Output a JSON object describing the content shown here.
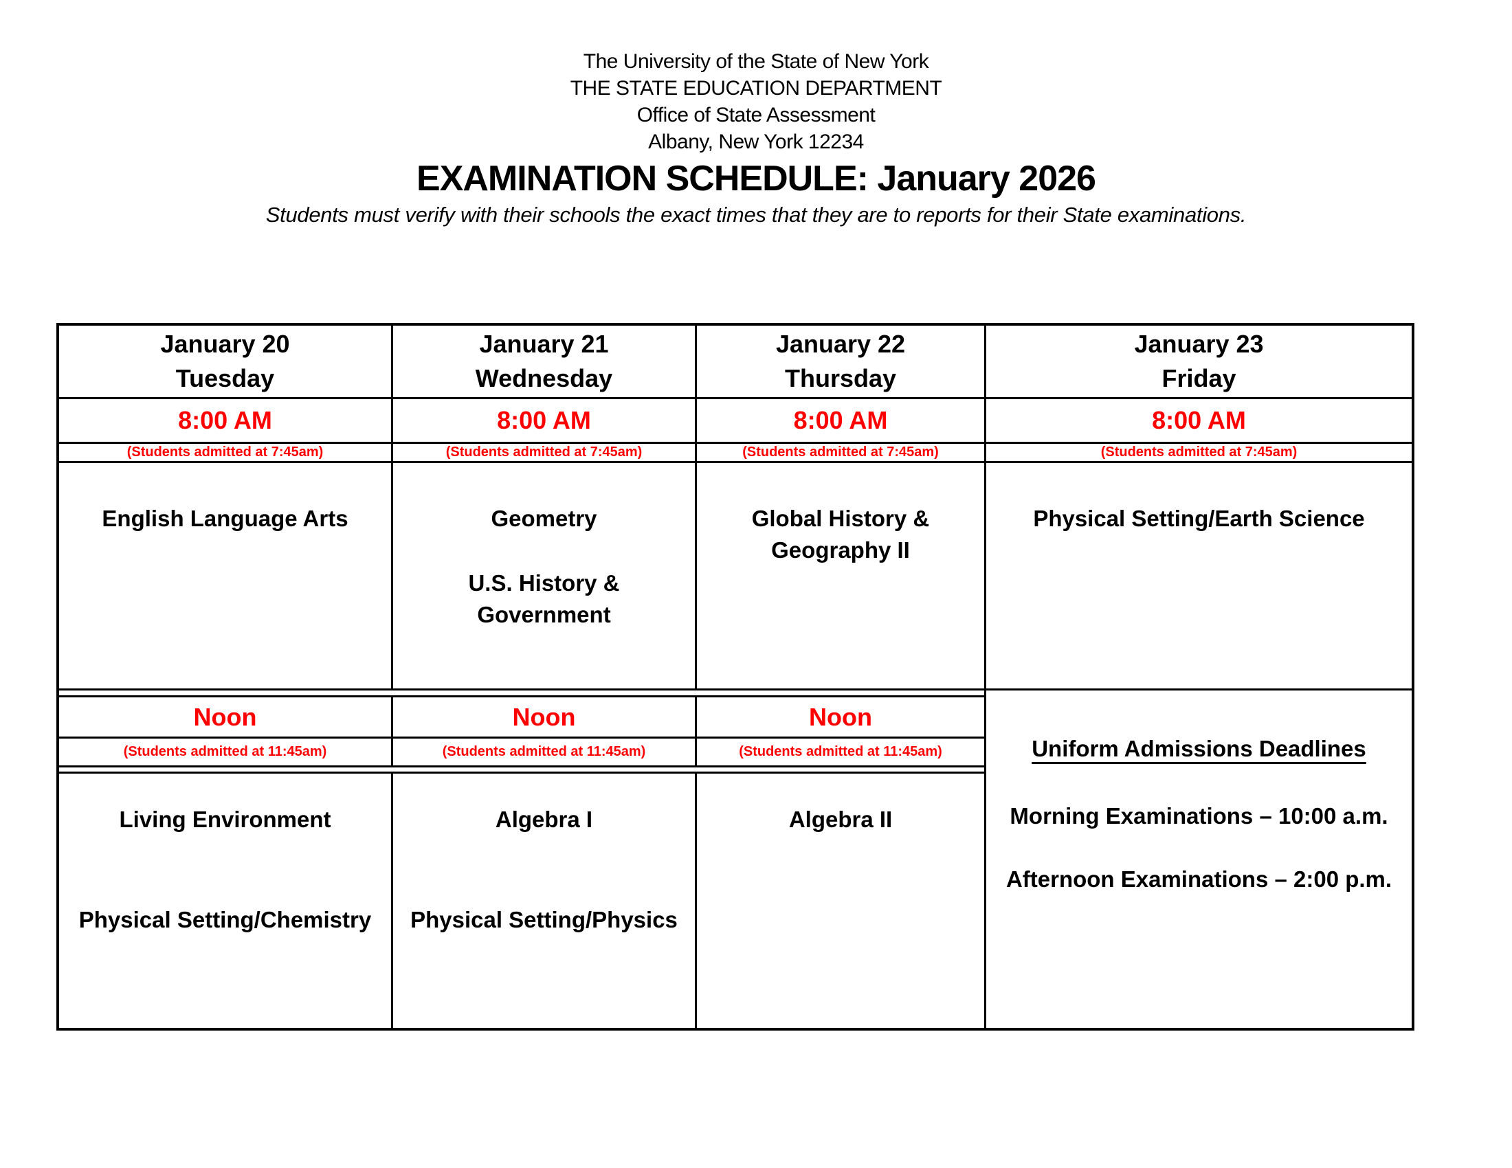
{
  "letterhead": {
    "lines": [
      "The University of the State of New York",
      "THE STATE EDUCATION DEPARTMENT",
      "Office of State Assessment",
      "Albany, New York 12234"
    ]
  },
  "title": "EXAMINATION SCHEDULE: January 2026",
  "subtitle": "Students must verify with their schools the exact times that they are to reports for their State examinations.",
  "colors": {
    "accent_red": "#FF0000",
    "text_black": "#000000",
    "border_black": "#000000",
    "background": "#FFFFFF"
  },
  "schedule": {
    "columns": [
      {
        "date": "January 20",
        "weekday": "Tuesday",
        "morning_time": "8:00 AM",
        "morning_admit": "(Students admitted at 7:45am)",
        "morning_exams": [
          "English Language Arts"
        ],
        "noon_time": "Noon",
        "noon_admit": "(Students admitted at 11:45am)",
        "afternoon_exams": [
          "Living Environment",
          "Physical Setting/Chemistry"
        ]
      },
      {
        "date": "January 21",
        "weekday": "Wednesday",
        "morning_time": "8:00 AM",
        "morning_admit": "(Students admitted at 7:45am)",
        "morning_exams": [
          "Geometry",
          "U.S. History &\nGovernment"
        ],
        "noon_time": "Noon",
        "noon_admit": "(Students admitted at 11:45am)",
        "afternoon_exams": [
          "Algebra I",
          "Physical Setting/Physics"
        ]
      },
      {
        "date": "January 22",
        "weekday": "Thursday",
        "morning_time": "8:00 AM",
        "morning_admit": "(Students admitted at 7:45am)",
        "morning_exams": [
          "Global History &\nGeography II"
        ],
        "noon_time": "Noon",
        "noon_admit": "(Students admitted at 11:45am)",
        "afternoon_exams": [
          "Algebra II"
        ]
      },
      {
        "date": "January 23",
        "weekday": "Friday",
        "morning_time": "8:00 AM",
        "morning_admit": "(Students admitted at 7:45am)",
        "morning_exams": [
          "Physical Setting/Earth Science"
        ]
      }
    ],
    "uniform_deadlines": {
      "heading": "Uniform Admissions Deadlines",
      "lines": [
        "Morning Examinations – 10:00 a.m.",
        "Afternoon Examinations – 2:00 p.m."
      ]
    }
  }
}
